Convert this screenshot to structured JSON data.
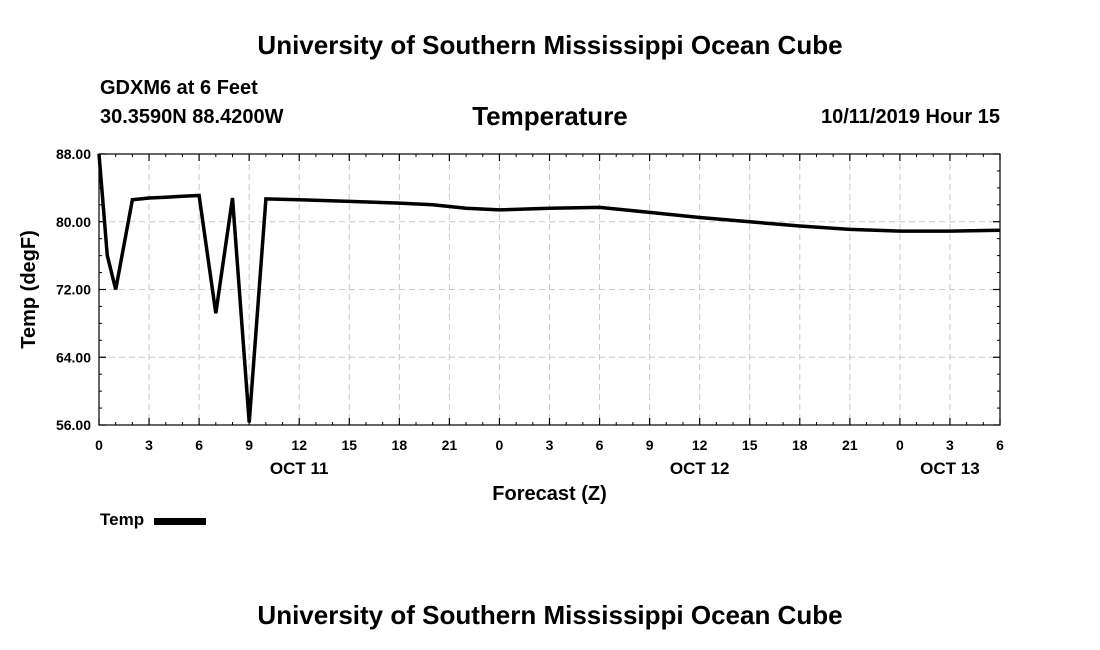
{
  "page": {
    "top_title": "University of Southern Mississippi Ocean Cube",
    "bottom_title": "University of Southern Mississippi Ocean Cube",
    "station": "GDXM6 at 6 Feet",
    "coords": "30.3590N 88.4200W",
    "datetime": "10/11/2019 Hour 15"
  },
  "chart_data": {
    "type": "line",
    "title": "Temperature",
    "xlabel": "Forecast (Z)",
    "ylabel": "Temp (degF)",
    "ylim": [
      56,
      88
    ],
    "xlim": [
      0,
      54
    ],
    "y_ticks": [
      "56.00",
      "64.00",
      "72.00",
      "80.00",
      "88.00"
    ],
    "x_ticks": [
      "0",
      "3",
      "6",
      "9",
      "12",
      "15",
      "18",
      "21",
      "0",
      "3",
      "6",
      "9",
      "12",
      "15",
      "18",
      "21",
      "0",
      "3",
      "6"
    ],
    "date_labels": [
      {
        "label": "OCT 11",
        "hour": 12
      },
      {
        "label": "OCT 12",
        "hour": 36
      },
      {
        "label": "OCT 13",
        "hour": 51
      }
    ],
    "grid": true,
    "legend": [
      {
        "name": "Temp",
        "placement": "bottom-left"
      }
    ],
    "series": [
      {
        "name": "Temp",
        "x": [
          0,
          0.5,
          1,
          2,
          3,
          4,
          5,
          6,
          7,
          8,
          9,
          10,
          12,
          15,
          18,
          20,
          22,
          24,
          27,
          30,
          33,
          36,
          39,
          42,
          45,
          48,
          51,
          54
        ],
        "y": [
          88,
          76,
          72,
          82.6,
          82.8,
          82.9,
          83,
          83.1,
          69.2,
          82.8,
          56.3,
          82.7,
          82.6,
          82.4,
          82.2,
          82,
          81.6,
          81.4,
          81.6,
          81.7,
          81.1,
          80.5,
          80,
          79.5,
          79.1,
          78.9,
          78.9,
          79
        ]
      }
    ]
  }
}
